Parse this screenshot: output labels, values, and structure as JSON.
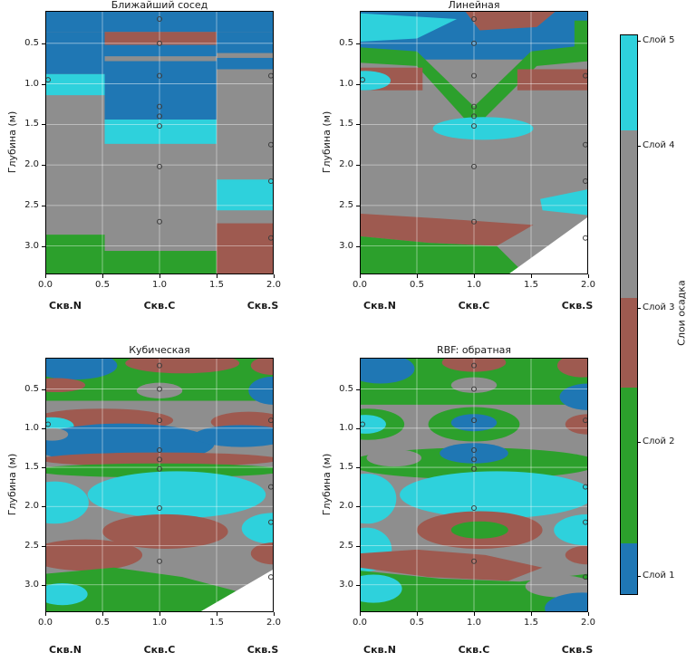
{
  "chart_data": {
    "type": "contourf-comparison",
    "figure_description": "Four filled-contour cross-sections of sediment layers between boreholes, interpolated with different methods",
    "ylabel": "Глубина (м)",
    "x_ticks": [
      "0.0",
      "0.5",
      "1.0",
      "1.5",
      "2.0"
    ],
    "y_ticks": [
      "0.5",
      "1.0",
      "1.5",
      "2.0",
      "2.5",
      "3.0"
    ],
    "x_range": [
      0,
      2
    ],
    "depth_range": [
      0.1,
      3.35
    ],
    "grid": true,
    "wells": [
      {
        "name": "Скв.N",
        "x": 0
      },
      {
        "name": "Скв.C",
        "x": 1
      },
      {
        "name": "Скв.S",
        "x": 2
      }
    ],
    "observation_points": [
      {
        "x": 0,
        "depths": [
          0.95
        ]
      },
      {
        "x": 1,
        "depths": [
          0.2,
          0.5,
          0.9,
          1.28,
          1.4,
          1.52,
          2.02,
          2.7
        ]
      },
      {
        "x": 2,
        "depths": [
          0.9,
          1.75,
          2.2,
          2.9
        ]
      }
    ],
    "palette": {
      "1": "#1f77b4",
      "2": "#2ca02c",
      "3": "#9e5a50",
      "4": "#8e8e8e",
      "5": "#2ed1dc",
      "w": "#ffffff"
    },
    "legend": {
      "title": "Слои осадка",
      "entries": [
        {
          "label": "Слой 5",
          "color": "#2ed1dc"
        },
        {
          "label": "Слой 4",
          "color": "#8e8e8e"
        },
        {
          "label": "Слой 3",
          "color": "#9e5a50"
        },
        {
          "label": "Слой 2",
          "color": "#2ca02c"
        },
        {
          "label": "Слой 1",
          "color": "#1f77b4"
        }
      ]
    },
    "subplots": [
      {
        "id": "nearest",
        "title": "Ближайший сосед",
        "regions": [
          {
            "t": "r",
            "x": 0,
            "y": 0.1,
            "w": 2,
            "h": 3.25,
            "c": "4"
          },
          {
            "t": "r",
            "x": 0,
            "y": 0.1,
            "w": 2,
            "h": 0.26,
            "c": "1"
          },
          {
            "t": "r",
            "x": 0,
            "y": 0.36,
            "w": 0.52,
            "h": 0.52,
            "c": "1"
          },
          {
            "t": "r",
            "x": 0,
            "y": 0.88,
            "w": 0.52,
            "h": 0.26,
            "c": "5"
          },
          {
            "t": "r",
            "x": 0.52,
            "y": 0.36,
            "w": 0.98,
            "h": 0.16,
            "c": "3"
          },
          {
            "t": "r",
            "x": 0.52,
            "y": 0.52,
            "w": 0.98,
            "h": 0.14,
            "c": "1"
          },
          {
            "t": "r",
            "x": 0.52,
            "y": 0.72,
            "w": 0.98,
            "h": 0.72,
            "c": "1"
          },
          {
            "t": "r",
            "x": 0.52,
            "y": 1.44,
            "w": 0.98,
            "h": 0.3,
            "c": "5"
          },
          {
            "t": "r",
            "x": 1.5,
            "y": 0.36,
            "w": 0.5,
            "h": 0.26,
            "c": "1"
          },
          {
            "t": "r",
            "x": 1.5,
            "y": 0.68,
            "w": 0.5,
            "h": 0.14,
            "c": "1"
          },
          {
            "t": "r",
            "x": 1.5,
            "y": 2.18,
            "w": 0.5,
            "h": 0.38,
            "c": "5"
          },
          {
            "t": "r",
            "x": 1.5,
            "y": 2.72,
            "w": 0.5,
            "h": 0.63,
            "c": "3"
          },
          {
            "t": "r",
            "x": 0,
            "y": 2.86,
            "w": 0.52,
            "h": 0.49,
            "c": "2"
          },
          {
            "t": "r",
            "x": 0.52,
            "y": 3.06,
            "w": 0.98,
            "h": 0.29,
            "c": "2"
          }
        ]
      },
      {
        "id": "linear",
        "title": "Линейная",
        "regions": [
          {
            "t": "r",
            "x": 0,
            "y": 0.1,
            "w": 2,
            "h": 3.25,
            "c": "4"
          },
          {
            "t": "r",
            "x": 0,
            "y": 0.1,
            "w": 2,
            "h": 0.6,
            "c": "1"
          },
          {
            "t": "p",
            "pts": [
              [
                0,
                0.13
              ],
              [
                0.85,
                0.2
              ],
              [
                0.5,
                0.44
              ],
              [
                0,
                0.48
              ]
            ],
            "c": "5"
          },
          {
            "t": "p",
            "pts": [
              [
                0.92,
                0.1
              ],
              [
                1.72,
                0.1
              ],
              [
                1.55,
                0.3
              ],
              [
                1.05,
                0.34
              ]
            ],
            "c": "3"
          },
          {
            "t": "r",
            "x": 1.88,
            "y": 0.22,
            "w": 0.12,
            "h": 0.5,
            "c": "2"
          },
          {
            "t": "p",
            "pts": [
              [
                0,
                0.55
              ],
              [
                0.5,
                0.6
              ],
              [
                1,
                1.28
              ],
              [
                1.5,
                0.6
              ],
              [
                2,
                0.52
              ],
              [
                2,
                0.72
              ],
              [
                1.55,
                0.78
              ],
              [
                1.05,
                1.48
              ],
              [
                0.95,
                1.48
              ],
              [
                0.5,
                0.78
              ],
              [
                0,
                0.74
              ]
            ],
            "c": "2"
          },
          {
            "t": "r",
            "x": 0,
            "y": 0.8,
            "w": 0.55,
            "h": 0.28,
            "c": "3"
          },
          {
            "t": "r",
            "x": 1.38,
            "y": 0.82,
            "w": 0.62,
            "h": 0.26,
            "c": "3"
          },
          {
            "t": "e",
            "cx": 0.05,
            "cy": 0.96,
            "rx": 0.22,
            "ry": 0.12,
            "c": "5"
          },
          {
            "t": "e",
            "cx": 1.08,
            "cy": 1.55,
            "rx": 0.44,
            "ry": 0.14,
            "c": "5"
          },
          {
            "t": "p",
            "pts": [
              [
                1.58,
                2.42
              ],
              [
                2,
                2.3
              ],
              [
                2,
                2.62
              ],
              [
                1.6,
                2.56
              ]
            ],
            "c": "5"
          },
          {
            "t": "p",
            "pts": [
              [
                0,
                2.6
              ],
              [
                0.7,
                2.66
              ],
              [
                1.52,
                2.74
              ],
              [
                1.2,
                3.0
              ],
              [
                0.6,
                2.96
              ],
              [
                0,
                2.88
              ]
            ],
            "c": "3"
          },
          {
            "t": "p",
            "pts": [
              [
                0,
                2.88
              ],
              [
                0.6,
                2.96
              ],
              [
                1.2,
                3.0
              ],
              [
                1.45,
                3.35
              ],
              [
                0,
                3.35
              ]
            ],
            "c": "2"
          },
          {
            "t": "p",
            "pts": [
              [
                1.3,
                3.35
              ],
              [
                2,
                2.64
              ],
              [
                2,
                3.35
              ]
            ],
            "c": "w"
          }
        ]
      },
      {
        "id": "cubic",
        "title": "Кубическая",
        "regions": [
          {
            "t": "r",
            "x": 0,
            "y": 0.1,
            "w": 2,
            "h": 3.25,
            "c": "4"
          },
          {
            "t": "r",
            "x": 0,
            "y": 0.1,
            "w": 2,
            "h": 0.55,
            "c": "2"
          },
          {
            "t": "e",
            "cx": 0.25,
            "cy": 0.2,
            "rx": 0.38,
            "ry": 0.18,
            "c": "1"
          },
          {
            "t": "e",
            "cx": 0.1,
            "cy": 0.45,
            "rx": 0.25,
            "ry": 0.09,
            "c": "3"
          },
          {
            "t": "e",
            "cx": 1.2,
            "cy": 0.17,
            "rx": 0.5,
            "ry": 0.13,
            "c": "3"
          },
          {
            "t": "e",
            "cx": 2.0,
            "cy": 0.2,
            "rx": 0.2,
            "ry": 0.12,
            "c": "3"
          },
          {
            "t": "e",
            "cx": 2.0,
            "cy": 0.52,
            "rx": 0.22,
            "ry": 0.18,
            "c": "1"
          },
          {
            "t": "e",
            "cx": 1.0,
            "cy": 0.52,
            "rx": 0.2,
            "ry": 0.1,
            "c": "4"
          },
          {
            "t": "e",
            "cx": 0.5,
            "cy": 0.9,
            "rx": 0.62,
            "ry": 0.15,
            "c": "3"
          },
          {
            "t": "e",
            "cx": 1.78,
            "cy": 0.92,
            "rx": 0.33,
            "ry": 0.13,
            "c": "3"
          },
          {
            "t": "e",
            "cx": 0.05,
            "cy": 0.97,
            "rx": 0.2,
            "ry": 0.11,
            "c": "5"
          },
          {
            "t": "e",
            "cx": 0.68,
            "cy": 1.2,
            "rx": 0.8,
            "ry": 0.26,
            "c": "1"
          },
          {
            "t": "e",
            "cx": 1.72,
            "cy": 1.1,
            "rx": 0.42,
            "ry": 0.14,
            "c": "1"
          },
          {
            "t": "e",
            "cx": 0.06,
            "cy": 1.08,
            "rx": 0.14,
            "ry": 0.08,
            "c": "4"
          },
          {
            "t": "e",
            "cx": 1.0,
            "cy": 1.4,
            "rx": 1.05,
            "ry": 0.09,
            "c": "3"
          },
          {
            "t": "e",
            "cx": 1.0,
            "cy": 1.54,
            "rx": 1.1,
            "ry": 0.09,
            "c": "2"
          },
          {
            "t": "e",
            "cx": 1.15,
            "cy": 1.85,
            "rx": 0.78,
            "ry": 0.3,
            "c": "5"
          },
          {
            "t": "e",
            "cx": 0.08,
            "cy": 1.95,
            "rx": 0.3,
            "ry": 0.27,
            "c": "5"
          },
          {
            "t": "e",
            "cx": 1.05,
            "cy": 2.32,
            "rx": 0.55,
            "ry": 0.22,
            "c": "3"
          },
          {
            "t": "e",
            "cx": 2.0,
            "cy": 2.28,
            "rx": 0.28,
            "ry": 0.2,
            "c": "5"
          },
          {
            "t": "e",
            "cx": 2.0,
            "cy": 2.6,
            "rx": 0.2,
            "ry": 0.14,
            "c": "3"
          },
          {
            "t": "e",
            "cx": 0.35,
            "cy": 2.62,
            "rx": 0.5,
            "ry": 0.2,
            "c": "3"
          },
          {
            "t": "p",
            "pts": [
              [
                0,
                2.86
              ],
              [
                0.6,
                2.78
              ],
              [
                1.2,
                2.9
              ],
              [
                1.85,
                3.15
              ],
              [
                1.62,
                3.35
              ],
              [
                0,
                3.35
              ]
            ],
            "c": "2"
          },
          {
            "t": "e",
            "cx": 0.15,
            "cy": 3.12,
            "rx": 0.22,
            "ry": 0.14,
            "c": "5"
          },
          {
            "t": "p",
            "pts": [
              [
                1.35,
                3.35
              ],
              [
                2,
                2.8
              ],
              [
                2,
                3.35
              ]
            ],
            "c": "w"
          }
        ]
      },
      {
        "id": "rbf",
        "title": "RBF: обратная",
        "regions": [
          {
            "t": "r",
            "x": 0,
            "y": 0.1,
            "w": 2,
            "h": 3.25,
            "c": "4"
          },
          {
            "t": "r",
            "x": 0,
            "y": 0.1,
            "w": 2,
            "h": 0.6,
            "c": "2"
          },
          {
            "t": "e",
            "cx": 0.18,
            "cy": 0.24,
            "rx": 0.3,
            "ry": 0.19,
            "c": "1"
          },
          {
            "t": "e",
            "cx": 1.0,
            "cy": 0.16,
            "rx": 0.28,
            "ry": 0.12,
            "c": "3"
          },
          {
            "t": "e",
            "cx": 1.0,
            "cy": 0.45,
            "rx": 0.2,
            "ry": 0.1,
            "c": "4"
          },
          {
            "t": "e",
            "cx": 1.95,
            "cy": 0.2,
            "rx": 0.22,
            "ry": 0.15,
            "c": "3"
          },
          {
            "t": "e",
            "cx": 2.0,
            "cy": 0.6,
            "rx": 0.25,
            "ry": 0.17,
            "c": "1"
          },
          {
            "t": "e",
            "cx": 0.07,
            "cy": 0.95,
            "rx": 0.32,
            "ry": 0.2,
            "c": "2"
          },
          {
            "t": "e",
            "cx": 0.05,
            "cy": 0.95,
            "rx": 0.18,
            "ry": 0.12,
            "c": "5"
          },
          {
            "t": "e",
            "cx": 1.0,
            "cy": 0.95,
            "rx": 0.4,
            "ry": 0.22,
            "c": "2"
          },
          {
            "t": "e",
            "cx": 1.0,
            "cy": 0.93,
            "rx": 0.2,
            "ry": 0.11,
            "c": "1"
          },
          {
            "t": "e",
            "cx": 2.0,
            "cy": 0.95,
            "rx": 0.2,
            "ry": 0.13,
            "c": "3"
          },
          {
            "t": "e",
            "cx": 1.0,
            "cy": 1.45,
            "rx": 1.1,
            "ry": 0.2,
            "c": "2"
          },
          {
            "t": "e",
            "cx": 1.0,
            "cy": 1.32,
            "rx": 0.3,
            "ry": 0.13,
            "c": "1"
          },
          {
            "t": "e",
            "cx": 0.3,
            "cy": 1.38,
            "rx": 0.24,
            "ry": 0.11,
            "c": "4"
          },
          {
            "t": "e",
            "cx": 1.2,
            "cy": 1.85,
            "rx": 0.85,
            "ry": 0.3,
            "c": "5"
          },
          {
            "t": "e",
            "cx": 0.06,
            "cy": 1.9,
            "rx": 0.26,
            "ry": 0.32,
            "c": "5"
          },
          {
            "t": "e",
            "cx": 0.06,
            "cy": 2.55,
            "rx": 0.22,
            "ry": 0.28,
            "c": "5"
          },
          {
            "t": "e",
            "cx": 1.05,
            "cy": 2.3,
            "rx": 0.55,
            "ry": 0.24,
            "c": "3"
          },
          {
            "t": "e",
            "cx": 1.05,
            "cy": 2.3,
            "rx": 0.25,
            "ry": 0.11,
            "c": "2"
          },
          {
            "t": "e",
            "cx": 2.0,
            "cy": 2.3,
            "rx": 0.3,
            "ry": 0.2,
            "c": "5"
          },
          {
            "t": "e",
            "cx": 2.0,
            "cy": 2.62,
            "rx": 0.2,
            "ry": 0.12,
            "c": "3"
          },
          {
            "t": "p",
            "pts": [
              [
                0,
                2.6
              ],
              [
                0.5,
                2.55
              ],
              [
                1.1,
                2.62
              ],
              [
                1.6,
                2.78
              ],
              [
                1.3,
                2.95
              ],
              [
                0.6,
                2.9
              ],
              [
                0,
                2.78
              ]
            ],
            "c": "3"
          },
          {
            "t": "p",
            "pts": [
              [
                0,
                2.82
              ],
              [
                0.7,
                2.92
              ],
              [
                1.4,
                2.96
              ],
              [
                2,
                2.86
              ],
              [
                2,
                3.35
              ],
              [
                0,
                3.35
              ]
            ],
            "c": "2"
          },
          {
            "t": "e",
            "cx": 0.12,
            "cy": 3.05,
            "rx": 0.25,
            "ry": 0.18,
            "c": "5"
          },
          {
            "t": "e",
            "cx": 1.75,
            "cy": 3.02,
            "rx": 0.3,
            "ry": 0.14,
            "c": "4"
          },
          {
            "t": "e",
            "cx": 1.95,
            "cy": 3.3,
            "rx": 0.33,
            "ry": 0.2,
            "c": "1"
          }
        ]
      }
    ]
  }
}
